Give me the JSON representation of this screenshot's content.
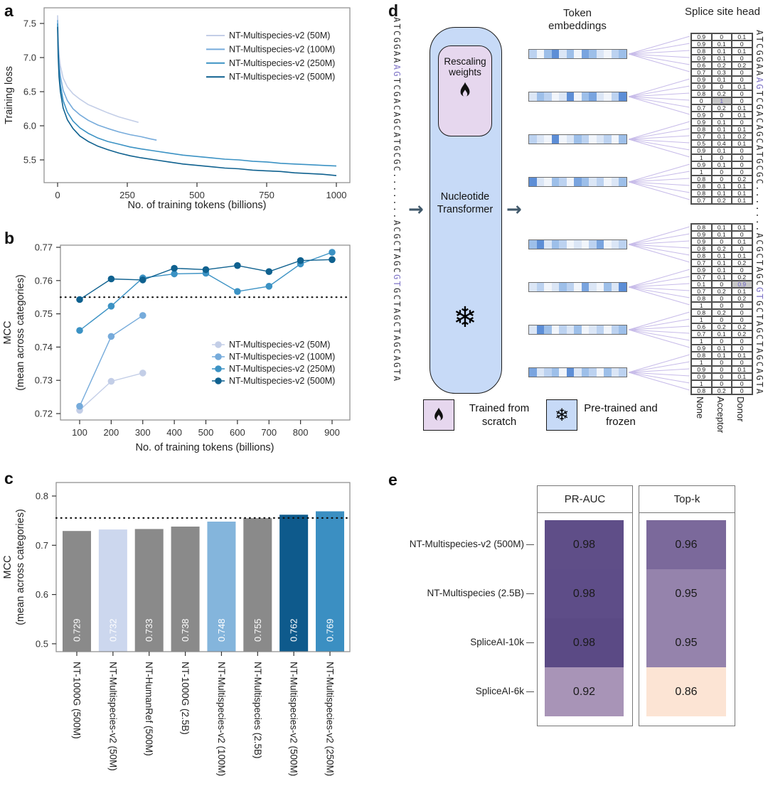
{
  "figure": {
    "panel_labels": {
      "a": "a",
      "b": "b",
      "c": "c",
      "d": "d",
      "e": "e"
    }
  },
  "palette": {
    "nt50": "#c3cee7",
    "nt100": "#76abdb",
    "nt250": "#3b92c4",
    "nt500": "#0f618f",
    "gray_bar": "#8a8a8a",
    "dotted_line": "#111111",
    "plot_border": "#8a8a8a",
    "fan_line": "#c7bbe9",
    "box_blue": "#c7daf7",
    "box_purple": "#e6d7ee"
  },
  "chart_data": [
    {
      "id": "a",
      "type": "line",
      "xlabel": "No. of training tokens (billions)",
      "ylabel": "Training loss",
      "xticks": [
        0,
        250,
        500,
        750,
        1000
      ],
      "yticks": [
        5.5,
        6.0,
        6.5,
        7.0,
        7.5
      ],
      "xlim": [
        -55,
        1050
      ],
      "ylim": [
        5.2,
        7.73
      ],
      "legend_position": "upper right",
      "series": [
        {
          "name": "NT-Multispecies-v2 (50M)",
          "color": "#c3cee7",
          "points": [
            [
              0,
              7.62
            ],
            [
              2,
              7.3
            ],
            [
              5,
              7.05
            ],
            [
              10,
              6.88
            ],
            [
              20,
              6.7
            ],
            [
              35,
              6.57
            ],
            [
              55,
              6.47
            ],
            [
              80,
              6.39
            ],
            [
              110,
              6.31
            ],
            [
              145,
              6.25
            ],
            [
              180,
              6.19
            ],
            [
              220,
              6.13
            ],
            [
              255,
              6.09
            ],
            [
              290,
              6.05
            ]
          ]
        },
        {
          "name": "NT-Multispecies-v2 (100M)",
          "color": "#76abdb",
          "points": [
            [
              0,
              7.55
            ],
            [
              2,
              7.2
            ],
            [
              5,
              6.93
            ],
            [
              10,
              6.73
            ],
            [
              20,
              6.52
            ],
            [
              35,
              6.37
            ],
            [
              55,
              6.25
            ],
            [
              80,
              6.16
            ],
            [
              110,
              6.08
            ],
            [
              145,
              6.01
            ],
            [
              180,
              5.96
            ],
            [
              220,
              5.91
            ],
            [
              260,
              5.87
            ],
            [
              300,
              5.84
            ],
            [
              330,
              5.81
            ],
            [
              355,
              5.79
            ]
          ]
        },
        {
          "name": "NT-Multispecies-v2 (250M)",
          "color": "#3b92c4",
          "points": [
            [
              0,
              7.5
            ],
            [
              2,
              7.1
            ],
            [
              5,
              6.82
            ],
            [
              10,
              6.6
            ],
            [
              20,
              6.37
            ],
            [
              35,
              6.2
            ],
            [
              55,
              6.07
            ],
            [
              80,
              5.97
            ],
            [
              110,
              5.89
            ],
            [
              145,
              5.82
            ],
            [
              180,
              5.77
            ],
            [
              220,
              5.73
            ],
            [
              260,
              5.69
            ],
            [
              300,
              5.66
            ],
            [
              350,
              5.63
            ],
            [
              400,
              5.6
            ],
            [
              450,
              5.57
            ],
            [
              500,
              5.55
            ],
            [
              550,
              5.53
            ],
            [
              600,
              5.51
            ],
            [
              650,
              5.5
            ],
            [
              700,
              5.48
            ],
            [
              750,
              5.47
            ],
            [
              800,
              5.45
            ],
            [
              850,
              5.44
            ],
            [
              900,
              5.43
            ],
            [
              950,
              5.42
            ],
            [
              1000,
              5.41
            ]
          ]
        },
        {
          "name": "NT-Multispecies-v2 (500M)",
          "color": "#0f618f",
          "points": [
            [
              0,
              7.45
            ],
            [
              2,
              7.02
            ],
            [
              5,
              6.72
            ],
            [
              10,
              6.5
            ],
            [
              20,
              6.26
            ],
            [
              35,
              6.09
            ],
            [
              55,
              5.96
            ],
            [
              80,
              5.85
            ],
            [
              110,
              5.77
            ],
            [
              145,
              5.7
            ],
            [
              180,
              5.65
            ],
            [
              220,
              5.6
            ],
            [
              260,
              5.56
            ],
            [
              300,
              5.53
            ],
            [
              350,
              5.5
            ],
            [
              400,
              5.47
            ],
            [
              450,
              5.44
            ],
            [
              500,
              5.42
            ],
            [
              550,
              5.4
            ],
            [
              600,
              5.38
            ],
            [
              650,
              5.37
            ],
            [
              700,
              5.35
            ],
            [
              750,
              5.34
            ],
            [
              800,
              5.33
            ],
            [
              850,
              5.31
            ],
            [
              900,
              5.3
            ],
            [
              950,
              5.29
            ],
            [
              1000,
              5.27
            ]
          ]
        }
      ]
    },
    {
      "id": "b",
      "type": "line-marker",
      "xlabel": "No. of training tokens (billions)",
      "ylabel_lines": [
        "MCC",
        "(mean across categories)"
      ],
      "xticks": [
        100,
        200,
        300,
        400,
        500,
        600,
        700,
        800,
        900
      ],
      "yticks": [
        0.72,
        0.73,
        0.74,
        0.75,
        0.76,
        0.77
      ],
      "hline": 0.755,
      "legend_position": "lower right",
      "series": [
        {
          "name": "NT-Multispecies-v2 (50M)",
          "color": "#c3cee7",
          "x": [
            100,
            200,
            300
          ],
          "y": [
            0.721,
            0.7297,
            0.7322
          ]
        },
        {
          "name": "NT-Multispecies-v2 (100M)",
          "color": "#76abdb",
          "x": [
            100,
            200,
            300
          ],
          "y": [
            0.7222,
            0.7432,
            0.7495
          ]
        },
        {
          "name": "NT-Multispecies-v2 (250M)",
          "color": "#3b92c4",
          "x": [
            100,
            200,
            300,
            400,
            500,
            600,
            700,
            800,
            900
          ],
          "y": [
            0.745,
            0.7523,
            0.7608,
            0.762,
            0.7622,
            0.7567,
            0.7583,
            0.765,
            0.7685
          ]
        },
        {
          "name": "NT-Multispecies-v2 (500M)",
          "color": "#0f618f",
          "x": [
            100,
            200,
            300,
            400,
            500,
            600,
            700,
            800,
            900
          ],
          "y": [
            0.7543,
            0.7605,
            0.7602,
            0.7637,
            0.7633,
            0.7645,
            0.7627,
            0.766,
            0.7663
          ]
        }
      ]
    },
    {
      "id": "c",
      "type": "bar",
      "ylabel_lines": [
        "MCC",
        "(mean across categories)"
      ],
      "categories": [
        "NT-1000G (500M)",
        "NT-Multispecies-v2 (50M)",
        "NT-HumanRef (500M)",
        "NT-1000G (2.5B)",
        "NT-Multispecies-v2 (100M)",
        "NT-Multispecies (2.5B)",
        "NT-Multispecies-v2 (500M)",
        "NT-Multispecies-v2 (250M)"
      ],
      "values": [
        0.729,
        0.732,
        0.733,
        0.738,
        0.748,
        0.755,
        0.762,
        0.769
      ],
      "value_labels": [
        "0.729",
        "0.732",
        "0.733",
        "0.738",
        "0.748",
        "0.755",
        "0.762",
        "0.769"
      ],
      "bar_colors": [
        "#8a8a8a",
        "#ccd7ee",
        "#8a8a8a",
        "#8a8a8a",
        "#84b5dc",
        "#8a8a8a",
        "#0e5a8c",
        "#3b8fc2"
      ],
      "yticks": [
        0.5,
        0.6,
        0.7,
        0.8
      ],
      "hline": 0.7555,
      "ylim": [
        0.484,
        0.82
      ]
    },
    {
      "id": "e",
      "type": "heatmap-table",
      "rows": [
        "NT-Multispecies-v2 (500M)",
        "NT-Multispecies (2.5B)",
        "SpliceAI-10k",
        "SpliceAI-6k"
      ],
      "columns": [
        "PR-AUC",
        "Top-k"
      ],
      "values": [
        [
          "0.98",
          "0.96"
        ],
        [
          "0.98",
          "0.95"
        ],
        [
          "0.98",
          "0.95"
        ],
        [
          "0.92",
          "0.86"
        ]
      ],
      "cell_colors": [
        [
          "#5f4e88",
          "#7b699b"
        ],
        [
          "#5e4d88",
          "#9583ac"
        ],
        [
          "#5b4a85",
          "#9583ac"
        ],
        [
          "#a894b7",
          "#fce4d4"
        ]
      ]
    }
  ],
  "diagram": {
    "labels": {
      "token_embeddings": "Token embeddings",
      "splice_site_head": "Splice site head",
      "rescaling_weights": "Rescaling weights",
      "nucleotide_transformer": "Nucleotide Transformer",
      "trained_from_scratch": "Trained from scratch",
      "pretrained_frozen": "Pre-trained and frozen"
    },
    "arrow_glyph": "→",
    "snowflake_glyph": "❄",
    "sequence": {
      "pre": "ATCGGAA",
      "acceptor": "AG",
      "mid": "TCGACAGCATGCGC",
      "dots": ".......",
      "pre2": "ACGCTAGC",
      "donor": "GT",
      "post": "GCTAGCTAGCAGTA"
    },
    "head_columns": [
      "None",
      "Acceptor",
      "Donor"
    ],
    "head_top": [
      [
        "0.9",
        "0",
        "0.1"
      ],
      [
        "0.9",
        "0.1",
        "0"
      ],
      [
        "0.8",
        "0.1",
        "0.1"
      ],
      [
        "0.9",
        "0.1",
        "0"
      ],
      [
        "0.6",
        "0.2",
        "0.2"
      ],
      [
        "0.7",
        "0.3",
        "0"
      ],
      [
        "0.9",
        "0.1",
        "0"
      ],
      [
        "0.9",
        "0",
        "0.1"
      ],
      [
        "0.8",
        "0.2",
        "0"
      ],
      [
        "0",
        "1",
        "0"
      ],
      [
        "0.7",
        "0.2",
        "0.1"
      ],
      [
        "0.9",
        "0",
        "0.1"
      ],
      [
        "0.9",
        "0.1",
        "0"
      ],
      [
        "0.8",
        "0.1",
        "0.1"
      ],
      [
        "0.7",
        "0.1",
        "0.2"
      ],
      [
        "0.5",
        "0.4",
        "0.1"
      ],
      [
        "0.9",
        "0.1",
        "0"
      ],
      [
        "1",
        "0",
        "0"
      ],
      [
        "0.9",
        "0.1",
        "0"
      ],
      [
        "1",
        "0",
        "0"
      ],
      [
        "0.8",
        "0",
        "0.2"
      ],
      [
        "0.8",
        "0.1",
        "0.1"
      ],
      [
        "0.8",
        "0.1",
        "0.1"
      ],
      [
        "0.7",
        "0.2",
        "0.1"
      ]
    ],
    "head_bottom": [
      [
        "0.8",
        "0.1",
        "0.1"
      ],
      [
        "0.9",
        "0.1",
        "0"
      ],
      [
        "0.9",
        "0",
        "0.1"
      ],
      [
        "0.8",
        "0.2",
        "0"
      ],
      [
        "0.8",
        "0.1",
        "0.1"
      ],
      [
        "0.7",
        "0.1",
        "0.2"
      ],
      [
        "0.9",
        "0.1",
        "0"
      ],
      [
        "0.7",
        "0.1",
        "0.2"
      ],
      [
        "0.1",
        "0",
        "0.9"
      ],
      [
        "0.7",
        "0.2",
        "0.1"
      ],
      [
        "0.8",
        "0",
        "0.2"
      ],
      [
        "1",
        "0",
        "0"
      ],
      [
        "0.8",
        "0.2",
        "0"
      ],
      [
        "1",
        "0",
        "0"
      ],
      [
        "0.6",
        "0.2",
        "0.2"
      ],
      [
        "0.7",
        "0.1",
        "0.2"
      ],
      [
        "1",
        "0",
        "0"
      ],
      [
        "0.9",
        "0.1",
        "0"
      ],
      [
        "0.8",
        "0.1",
        "0.1"
      ],
      [
        "1",
        "0",
        "0"
      ],
      [
        "0.9",
        "0",
        "0.1"
      ],
      [
        "0.9",
        "0",
        "0.1"
      ],
      [
        "1",
        "0",
        "0"
      ],
      [
        "0.8",
        "0.2",
        "0"
      ]
    ],
    "highlight_top": {
      "row": 9,
      "col": 1
    },
    "highlight_bottom": {
      "row": 8,
      "col": 2
    },
    "embeddings": [
      [
        "#bcd2f0",
        "#f1f5fb",
        "#9dbfe9",
        "#5d8ed6",
        "#dbe6f6",
        "#9dbfe9",
        "#f1f5fb",
        "#79a4df",
        "#9dbfe9",
        "#dbe6f6",
        "#f1f5fb",
        "#bcd2f0",
        "#9dbfe9"
      ],
      [
        "#dbe6f6",
        "#9dbfe9",
        "#bcd2f0",
        "#f1f5fb",
        "#dbe6f6",
        "#5d8ed6",
        "#f1f5fb",
        "#9dbfe9",
        "#79a4df",
        "#dbe6f6",
        "#f1f5fb",
        "#bcd2f0",
        "#5d8ed6"
      ],
      [
        "#bcd2f0",
        "#dbe6f6",
        "#f1f5fb",
        "#5d8ed6",
        "#f1f5fb",
        "#dbe6f6",
        "#9dbfe9",
        "#bcd2f0",
        "#f1f5fb",
        "#dbe6f6",
        "#bcd2f0",
        "#f1f5fb",
        "#9dbfe9"
      ],
      [
        "#5d8ed6",
        "#dbe6f6",
        "#f1f5fb",
        "#9dbfe9",
        "#bcd2f0",
        "#f1f5fb",
        "#79a4df",
        "#9dbfe9",
        "#dbe6f6",
        "#bcd2f0",
        "#f1f5fb",
        "#dbe6f6",
        "#9dbfe9"
      ],
      [
        "#9dbfe9",
        "#5d8ed6",
        "#dbe6f6",
        "#9dbfe9",
        "#bcd2f0",
        "#f1f5fb",
        "#dbe6f6",
        "#f1f5fb",
        "#bcd2f0",
        "#79a4df",
        "#f1f5fb",
        "#dbe6f6",
        "#bcd2f0"
      ],
      [
        "#dbe6f6",
        "#bcd2f0",
        "#f1f5fb",
        "#dbe6f6",
        "#9dbfe9",
        "#bcd2f0",
        "#f1f5fb",
        "#79a4df",
        "#dbe6f6",
        "#f1f5fb",
        "#9dbfe9",
        "#dbe6f6",
        "#5d8ed6"
      ],
      [
        "#dbe6f6",
        "#5d8ed6",
        "#9dbfe9",
        "#f1f5fb",
        "#bcd2f0",
        "#dbe6f6",
        "#9dbfe9",
        "#f1f5fb",
        "#dbe6f6",
        "#bcd2f0",
        "#f1f5fb",
        "#bcd2f0",
        "#9dbfe9"
      ],
      [
        "#79a4df",
        "#dbe6f6",
        "#bcd2f0",
        "#9dbfe9",
        "#f1f5fb",
        "#5d8ed6",
        "#dbe6f6",
        "#9dbfe9",
        "#bcd2f0",
        "#f1f5fb",
        "#9dbfe9",
        "#dbe6f6",
        "#bcd2f0"
      ]
    ]
  }
}
